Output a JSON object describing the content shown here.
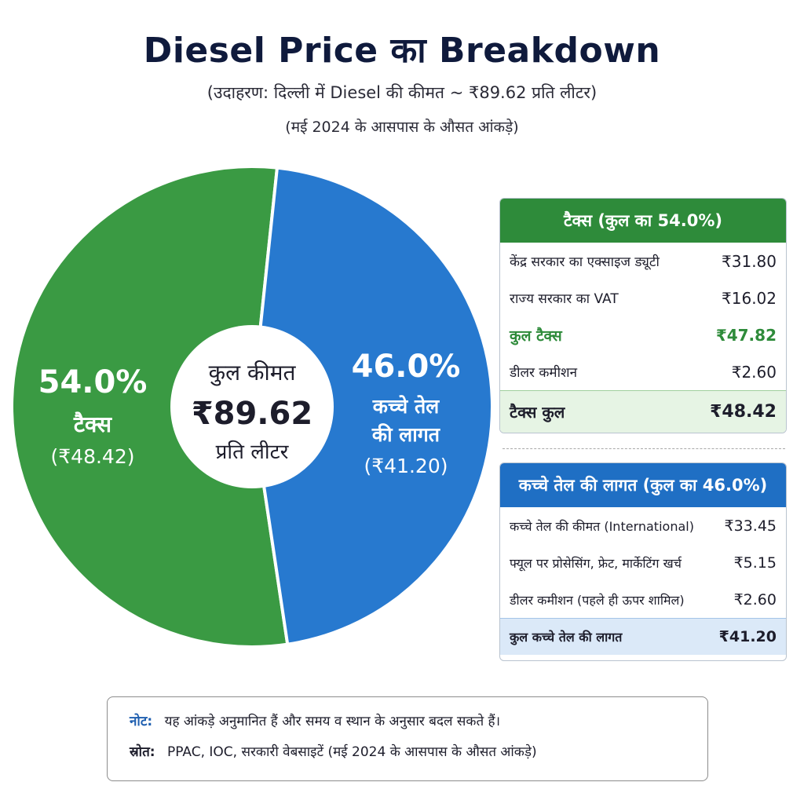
{
  "title": "Diesel Price का Breakdown",
  "subtitle": "(उदाहरण: दिल्ली में Diesel की कीमत ~ ₹89.62 प्रति लीटर)",
  "subtitle2": "(मई 2024 के आसपास के औसत आंकड़े)",
  "colors": {
    "tax": "#3a9a43",
    "oil": "#2779cf",
    "tax_dark": "#2e8b3a",
    "oil_dark": "#1f6fc4"
  },
  "chart_data": {
    "type": "pie",
    "center": {
      "line1": "कुल कीमत",
      "line2": "₹89.62",
      "line3": "प्रति लीटर"
    },
    "slices": [
      {
        "name": "टैक्स",
        "percent_label": "54.0%",
        "value_label": "(₹48.42)",
        "value": 48.42,
        "percent": 54.0
      },
      {
        "name": "कच्चे तेल की लागत",
        "name_line1": "कच्चे तेल",
        "name_line2": "की लागत",
        "percent_label": "46.0%",
        "value_label": "(₹41.20)",
        "value": 41.2,
        "percent": 46.0
      }
    ]
  },
  "tax_panel": {
    "header": "टैक्स (कुल का 54.0%)",
    "rows": [
      {
        "label": "केंद्र सरकार का एक्साइज ड्यूटी",
        "value": "₹31.80"
      },
      {
        "label": "राज्य सरकार का VAT",
        "value": "₹16.02"
      },
      {
        "label": "कुल टैक्स",
        "value": "₹47.82"
      },
      {
        "label": "डीलर कमीशन",
        "value": "₹2.60"
      }
    ],
    "total": {
      "label": "टैक्स कुल",
      "value": "₹48.42"
    }
  },
  "oil_panel": {
    "header": "कच्चे तेल की लागत (कुल का 46.0%)",
    "rows": [
      {
        "label": "कच्चे तेल की कीमत (International)",
        "value": "₹33.45"
      },
      {
        "label": "फ्यूल पर प्रोसेसिंग, फ्रेट, मार्केटिंग खर्च",
        "value": "₹5.15"
      },
      {
        "label": "डीलर कमीशन (पहले ही ऊपर शामिल)",
        "value": "₹2.60"
      }
    ],
    "total": {
      "label": "कुल कच्चे तेल की लागत",
      "value": "₹41.20"
    }
  },
  "note": {
    "note_label": "नोट:",
    "note_text": "यह आंकड़े अनुमानित हैं और समय व स्थान के अनुसार बदल सकते हैं।",
    "source_label": "स्रोत:",
    "source_text": "PPAC, IOC, सरकारी वेबसाइटें   (मई 2024 के आसपास के औसत आंकड़े)"
  }
}
